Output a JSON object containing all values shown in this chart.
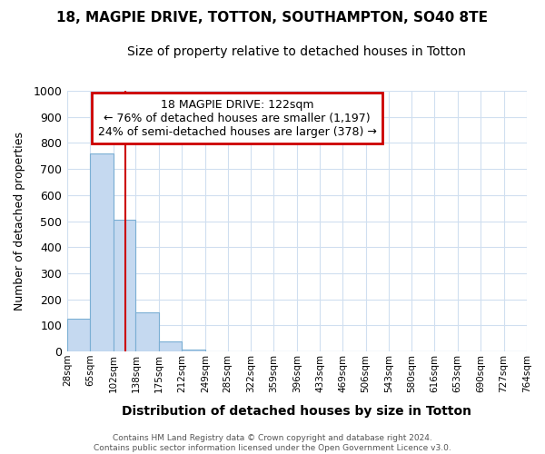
{
  "title1": "18, MAGPIE DRIVE, TOTTON, SOUTHAMPTON, SO40 8TE",
  "title2": "Size of property relative to detached houses in Totton",
  "xlabel": "Distribution of detached houses by size in Totton",
  "ylabel": "Number of detached properties",
  "bin_edges": [
    28,
    65,
    102,
    138,
    175,
    212,
    249,
    285,
    322,
    359,
    396,
    433,
    469,
    506,
    543,
    580,
    616,
    653,
    690,
    727,
    764
  ],
  "bar_heights": [
    125,
    760,
    505,
    150,
    40,
    8,
    0,
    0,
    0,
    0,
    0,
    0,
    0,
    0,
    0,
    0,
    0,
    0,
    0,
    0
  ],
  "bar_color": "#c5d9f0",
  "bar_edge_color": "#7bafd4",
  "property_size": 122,
  "red_line_color": "#cc0000",
  "ylim": [
    0,
    1000
  ],
  "yticks": [
    0,
    100,
    200,
    300,
    400,
    500,
    600,
    700,
    800,
    900,
    1000
  ],
  "annotation_title": "18 MAGPIE DRIVE: 122sqm",
  "annotation_line1": "← 76% of detached houses are smaller (1,197)",
  "annotation_line2": "24% of semi-detached houses are larger (378) →",
  "annotation_box_color": "#ffffff",
  "annotation_box_edge": "#cc0000",
  "footer1": "Contains HM Land Registry data © Crown copyright and database right 2024.",
  "footer2": "Contains public sector information licensed under the Open Government Licence v3.0.",
  "background_color": "#ffffff",
  "grid_color": "#d0dff0"
}
